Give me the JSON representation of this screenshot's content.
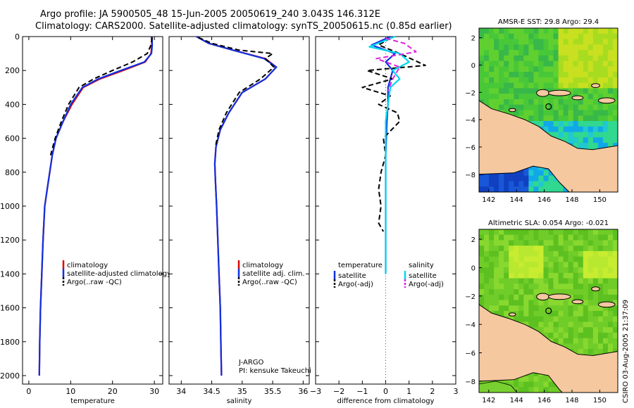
{
  "header": {
    "line1": "Argo profile: JA 5900505_48 15-Jun-2005 20050619_240 3.043S 146.312E",
    "line2": "Climatology: CARS2000. Satellite-adjusted climatology: synTS_20050615.nc (0.85d earlier)"
  },
  "footer": {
    "stamp": "CSIRO 03-Aug-2005 21:37:09"
  },
  "colors": {
    "climatology": "#e00000",
    "satellite": "#1030e0",
    "argo": "#000000",
    "salinity": "#00d8f0",
    "salinity_argo": "#e020e0",
    "land": "#f5c8a0"
  },
  "chart_data": [
    {
      "type": "line",
      "id": "temperature",
      "xlabel": "temperature",
      "ylabel": "",
      "xlim": [
        -1.5,
        32
      ],
      "ylim": [
        2050,
        0
      ],
      "xticks": [
        0,
        10,
        20,
        30
      ],
      "yticks": [
        0,
        200,
        400,
        600,
        800,
        1000,
        1200,
        1400,
        1600,
        1800,
        2000
      ],
      "legend": [
        "climatology",
        "satellite-adjusted climatology",
        "Argo(..raw -QC)"
      ],
      "series": [
        {
          "name": "climatology",
          "style": "climatology",
          "x": [
            29.3,
            29.4,
            29.2,
            27.8,
            22.5,
            17.0,
            13.0,
            10.3,
            8.2,
            6.5,
            5.6,
            5.0,
            4.4,
            3.8,
            3.4,
            3.1,
            2.8,
            2.6,
            2.5
          ],
          "y": [
            0,
            50,
            100,
            150,
            200,
            250,
            300,
            400,
            500,
            600,
            700,
            800,
            900,
            1000,
            1200,
            1400,
            1600,
            1800,
            2000
          ]
        },
        {
          "name": "satellite-adjusted climatology",
          "style": "satellite",
          "x": [
            29.4,
            29.5,
            29.3,
            27.6,
            22.0,
            16.6,
            12.8,
            10.0,
            8.2,
            6.5,
            5.6,
            5.0,
            4.4,
            3.8,
            3.4,
            3.1,
            2.8,
            2.6,
            2.5
          ],
          "y": [
            0,
            50,
            100,
            150,
            200,
            250,
            300,
            400,
            500,
            600,
            700,
            800,
            900,
            1000,
            1200,
            1400,
            1600,
            1800,
            2000
          ]
        },
        {
          "name": "Argo(..raw -QC)",
          "style": "argo",
          "x": [
            29.5,
            29.2,
            28.3,
            24.8,
            20.0,
            15.5,
            12.0,
            9.5,
            7.8,
            6.3,
            5.2
          ],
          "y": [
            5,
            50,
            100,
            150,
            200,
            250,
            300,
            400,
            500,
            600,
            700
          ]
        }
      ]
    },
    {
      "type": "line",
      "id": "salinity",
      "xlabel": "salinity",
      "ylabel": "",
      "xlim": [
        33.8,
        36.1
      ],
      "ylim": [
        2050,
        0
      ],
      "xticks": [
        34,
        34.5,
        35,
        35.5,
        36
      ],
      "yticks": [
        0,
        200,
        400,
        600,
        800,
        1000,
        1200,
        1400,
        1600,
        1800,
        2000
      ],
      "legend": [
        "climatology",
        "satellite adj. clim.",
        "Argo(..raw -QC)"
      ],
      "annotation": [
        "J-ARGO",
        "PI: kensuke Takeuchi"
      ],
      "series": [
        {
          "name": "climatology",
          "style": "climatology",
          "x": [
            34.25,
            34.45,
            34.85,
            35.38,
            35.56,
            35.38,
            35.0,
            34.78,
            34.64,
            34.57,
            34.55,
            34.56,
            34.58,
            34.6,
            34.62,
            34.64,
            34.65,
            34.66
          ],
          "y": [
            0,
            40,
            80,
            130,
            180,
            250,
            330,
            450,
            550,
            650,
            750,
            850,
            1000,
            1200,
            1400,
            1600,
            1800,
            2000
          ]
        },
        {
          "name": "satellite adj. clim.",
          "style": "satellite",
          "x": [
            34.25,
            34.45,
            34.85,
            35.36,
            35.56,
            35.38,
            35.0,
            34.78,
            34.64,
            34.57,
            34.55,
            34.56,
            34.58,
            34.6,
            34.62,
            34.64,
            34.65,
            34.66
          ],
          "y": [
            0,
            40,
            80,
            130,
            180,
            250,
            330,
            450,
            550,
            650,
            750,
            850,
            1000,
            1200,
            1400,
            1600,
            1800,
            2000
          ]
        },
        {
          "name": "Argo(..raw -QC)",
          "style": "argo",
          "x": [
            34.28,
            34.5,
            34.95,
            35.5,
            35.38,
            35.52,
            35.3,
            34.95,
            34.74,
            34.62,
            34.56
          ],
          "y": [
            5,
            40,
            80,
            100,
            130,
            180,
            250,
            330,
            450,
            550,
            650
          ]
        }
      ]
    },
    {
      "type": "line",
      "id": "difference",
      "xlabel": "difference from climatology",
      "ylabel": "",
      "xlim": [
        -3,
        3
      ],
      "ylim": [
        2050,
        0
      ],
      "xticks": [
        -3,
        -2,
        -1,
        0,
        1,
        2,
        3
      ],
      "yticks": [
        0,
        200,
        400,
        600,
        800,
        1000,
        1200,
        1400,
        1600,
        1800,
        2000
      ],
      "legend_left": [
        "temperature",
        "satellite",
        "Argo(-adj)"
      ],
      "legend_right": [
        "salinity",
        "satellite",
        "Argo(-adj)"
      ],
      "series": [
        {
          "name": "temperature satellite",
          "style": "satellite",
          "x": [
            0.2,
            -0.6,
            0.4,
            0.0,
            0.3,
            0.1,
            0.1,
            0.05,
            0.0,
            0.0,
            0.0
          ],
          "y": [
            0,
            50,
            100,
            150,
            200,
            300,
            400,
            500,
            700,
            1000,
            1400
          ]
        },
        {
          "name": "temperature Argo(-adj)",
          "style": "argo",
          "x": [
            0.2,
            -0.3,
            0.6,
            1.7,
            -0.8,
            0.3,
            -1.0,
            0.2,
            -0.3,
            0.5,
            0.6,
            -0.1,
            0.0,
            -0.2,
            -0.3,
            -0.2,
            -0.3,
            -0.1
          ],
          "y": [
            10,
            50,
            100,
            170,
            200,
            250,
            300,
            350,
            400,
            450,
            500,
            600,
            700,
            800,
            900,
            1000,
            1100,
            1150
          ]
        },
        {
          "name": "salinity satellite",
          "style": "salinity",
          "x": [
            0.4,
            -0.7,
            0.6,
            1.0,
            0.3,
            0.6,
            0.2,
            0.1,
            0.0,
            0.0,
            0.0,
            0.0
          ],
          "y": [
            0,
            60,
            100,
            150,
            200,
            250,
            300,
            400,
            500,
            700,
            1000,
            1400
          ]
        },
        {
          "name": "salinity Argo(-adj)",
          "style": "salinity_argo",
          "x": [
            0.0,
            0.8,
            1.3,
            -0.4,
            0.6,
            0.3,
            0.1
          ],
          "y": [
            10,
            40,
            90,
            130,
            180,
            250,
            320
          ]
        }
      ]
    },
    {
      "type": "heatmap",
      "id": "sst_map",
      "title": "AMSR-E SST: 29.8 Argo: 29.4",
      "xlim": [
        141.3,
        151.3
      ],
      "ylim": [
        -9.3,
        2.7
      ],
      "xticks": [
        142,
        144,
        146,
        148,
        150
      ],
      "yticks": [
        2,
        0,
        -2,
        -4,
        -6,
        -8
      ],
      "argo_location": {
        "lon": 146.312,
        "lat": -3.043
      }
    },
    {
      "type": "heatmap",
      "id": "sla_map",
      "title": "Altimetric SLA: 0.054 Argo: -0.021",
      "xlim": [
        141.3,
        151.3
      ],
      "ylim": [
        -8.8,
        2.7
      ],
      "xticks": [
        142,
        144,
        146,
        148,
        150
      ],
      "yticks": [
        2,
        0,
        -2,
        -4,
        -6,
        -8
      ],
      "argo_location": {
        "lon": 146.312,
        "lat": -3.043
      }
    }
  ]
}
